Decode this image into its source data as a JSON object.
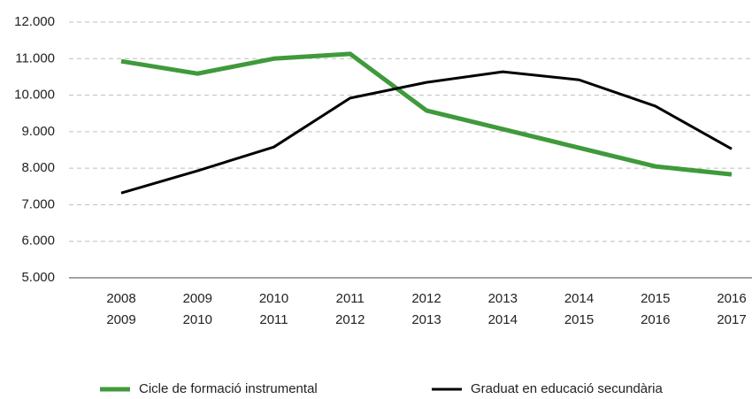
{
  "chart_data": {
    "type": "line",
    "categories": [
      [
        "2008",
        "2009"
      ],
      [
        "2009",
        "2010"
      ],
      [
        "2010",
        "2011"
      ],
      [
        "2011",
        "2012"
      ],
      [
        "2012",
        "2013"
      ],
      [
        "2013",
        "2014"
      ],
      [
        "2014",
        "2015"
      ],
      [
        "2015",
        "2016"
      ],
      [
        "2016",
        "2017"
      ]
    ],
    "series": [
      {
        "name": "Cicle de formació instrumental",
        "color": "#3f9a3b",
        "values": [
          10930,
          10590,
          11000,
          11130,
          9580,
          9070,
          8560,
          8050,
          7830
        ]
      },
      {
        "name": "Graduat en educació secundària",
        "color": "#000000",
        "values": [
          7320,
          7930,
          8580,
          9920,
          10350,
          10640,
          10420,
          9700,
          8530
        ]
      }
    ],
    "ylim": [
      5000,
      12000
    ],
    "yticks": [
      {
        "value": 5000,
        "label": "5.000"
      },
      {
        "value": 6000,
        "label": "6.000"
      },
      {
        "value": 7000,
        "label": "7.000"
      },
      {
        "value": 8000,
        "label": "8.000"
      },
      {
        "value": 9000,
        "label": "9.000"
      },
      {
        "value": 10000,
        "label": "10.000"
      },
      {
        "value": 11000,
        "label": "11.000"
      },
      {
        "value": 12000,
        "label": "12.000"
      }
    ],
    "grid": true,
    "legend": "bottom"
  }
}
